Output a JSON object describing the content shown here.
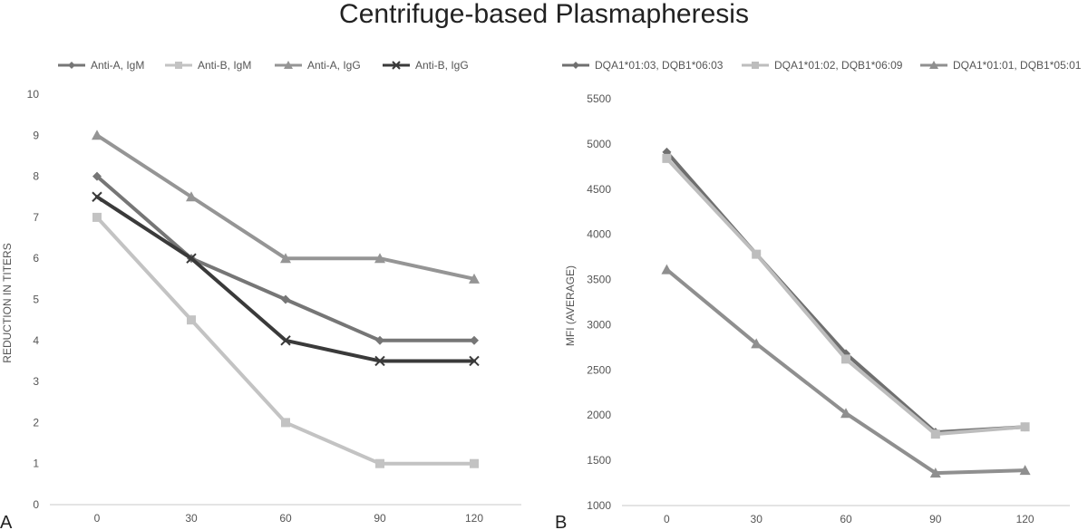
{
  "title": "Centrifuge-based Plasmapheresis",
  "chart_data": [
    {
      "panel": "A",
      "type": "line",
      "ylabel": "REDUCTION IN TITERS",
      "categories": [
        "0",
        "30",
        "60",
        "90",
        "120"
      ],
      "ylim": [
        0,
        10
      ],
      "yticks": [
        0,
        1,
        2,
        3,
        4,
        5,
        6,
        7,
        8,
        9,
        10
      ],
      "legend_position": "top",
      "series": [
        {
          "name": "Anti-A, IgM",
          "marker": "diamond",
          "color": "#767676",
          "values": [
            8,
            6,
            5,
            4,
            4
          ]
        },
        {
          "name": "Anti-B, IgM",
          "marker": "square",
          "color": "#c3c3c3",
          "values": [
            7,
            4.5,
            2,
            1,
            1
          ]
        },
        {
          "name": "Anti-A, IgG",
          "marker": "triangle",
          "color": "#959595",
          "values": [
            9,
            7.5,
            6,
            6,
            5.5
          ]
        },
        {
          "name": "Anti-B, IgG",
          "marker": "x",
          "color": "#3a3a3a",
          "values": [
            7.5,
            6,
            4,
            3.5,
            3.5
          ]
        }
      ]
    },
    {
      "panel": "B",
      "type": "line",
      "ylabel": "MFI (AVERAGE)",
      "categories": [
        "0",
        "30",
        "60",
        "90",
        "120"
      ],
      "ylim": [
        1000,
        5500
      ],
      "yticks": [
        1000,
        1500,
        2000,
        2500,
        3000,
        3500,
        4000,
        4500,
        5000,
        5500
      ],
      "legend_position": "top",
      "series": [
        {
          "name": "DQA1*01:03, DQB1*06:03",
          "marker": "diamond",
          "color": "#6f6f6f",
          "values": [
            4910,
            3780,
            2680,
            1810,
            1870
          ]
        },
        {
          "name": "DQA1*01:02, DQB1*06:09",
          "marker": "square",
          "color": "#bdbdbd",
          "values": [
            4840,
            3780,
            2620,
            1790,
            1870
          ]
        },
        {
          "name": "DQA1*01:01, DQB1*05:01",
          "marker": "triangle",
          "color": "#8f8f8f",
          "values": [
            3610,
            2790,
            2020,
            1360,
            1390
          ]
        }
      ]
    }
  ]
}
